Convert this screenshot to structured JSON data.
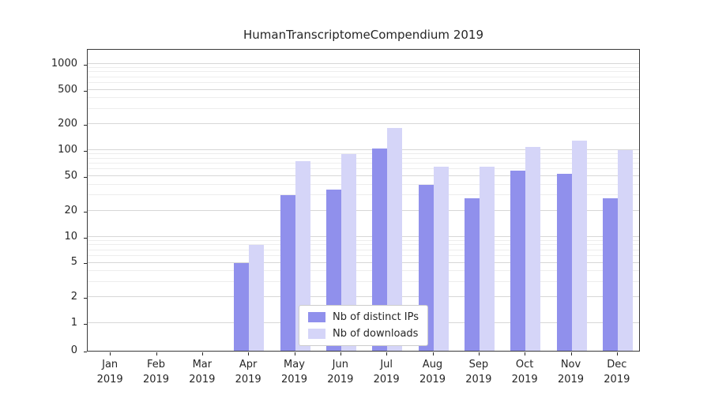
{
  "chart_data": {
    "type": "bar",
    "title": "HumanTranscriptomeCompendium 2019",
    "categories": [
      "Jan 2019",
      "Feb 2019",
      "Mar 2019",
      "Apr 2019",
      "May 2019",
      "Jun 2019",
      "Jul 2019",
      "Aug 2019",
      "Sep 2019",
      "Oct 2019",
      "Nov 2019",
      "Dec 2019"
    ],
    "series": [
      {
        "name": "Nb of distinct IPs",
        "color": "#9090ec",
        "values": [
          0,
          0,
          0,
          5,
          30,
          35,
          105,
          40,
          28,
          58,
          53,
          28
        ]
      },
      {
        "name": "Nb of downloads",
        "color": "#d5d5f8",
        "values": [
          0,
          0,
          0,
          8,
          75,
          90,
          180,
          65,
          65,
          110,
          130,
          100
        ]
      }
    ],
    "yscale": "symlog",
    "yticks": [
      0,
      1,
      2,
      5,
      10,
      20,
      50,
      100,
      200,
      500,
      1000
    ],
    "ylim": [
      0,
      1500
    ],
    "xlabel": "",
    "ylabel": "",
    "grid": true,
    "legend_position": "lower center"
  }
}
